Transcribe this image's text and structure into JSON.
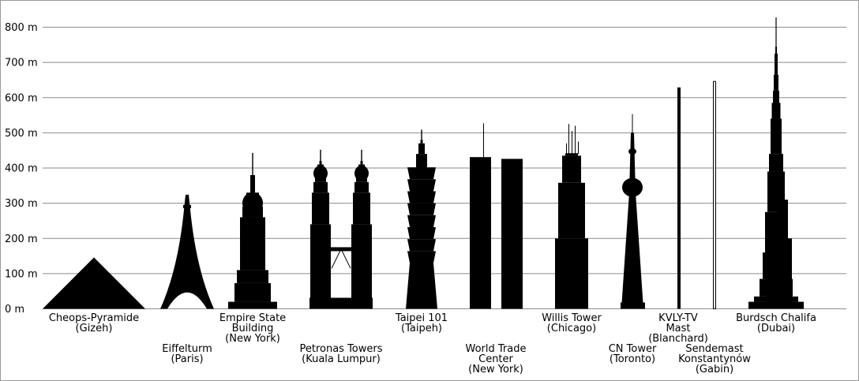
{
  "chart_data": {
    "type": "bar",
    "title": "",
    "xlabel": "",
    "ylabel": "",
    "unit": "m",
    "ylim": [
      0,
      800
    ],
    "yticks": [
      0,
      100,
      200,
      300,
      400,
      500,
      600,
      700,
      800
    ],
    "ytick_labels": [
      "0 m",
      "100 m",
      "200 m",
      "300 m",
      "400 m",
      "500 m",
      "600 m",
      "700 m",
      "800 m"
    ],
    "grid": true,
    "color": "#000000",
    "categories": [
      {
        "name": "Cheops-Pyramide",
        "place": "(Gizeh)",
        "value": 146,
        "shape": "pyramid"
      },
      {
        "name": "Eiffelturm",
        "place": "(Paris)",
        "value": 324,
        "shape": "eiffel"
      },
      {
        "name": "Empire State Building",
        "place": "(New York)",
        "value": 443,
        "shape": "empire"
      },
      {
        "name": "Petronas Towers",
        "place": "(Kuala Lumpur)",
        "value": 452,
        "shape": "petronas"
      },
      {
        "name": "Taipei 101",
        "place": "(Taipeh)",
        "value": 509,
        "shape": "taipei"
      },
      {
        "name": "World Trade Center",
        "place": "(New York)",
        "value": 527,
        "shape": "wtc"
      },
      {
        "name": "Willis Tower",
        "place": "(Chicago)",
        "value": 527,
        "shape": "willis"
      },
      {
        "name": "CN Tower",
        "place": "(Toronto)",
        "value": 553,
        "shape": "cn"
      },
      {
        "name": "KVLY-TV Mast",
        "place": "(Blanchard)",
        "value": 629,
        "shape": "mast"
      },
      {
        "name": "Sendemast Konstantynów",
        "place": "(Gabin)",
        "value": 646,
        "shape": "mast2"
      },
      {
        "name": "Burdsch Chalifa",
        "place": "(Dubai)",
        "value": 828,
        "shape": "burj"
      }
    ]
  }
}
